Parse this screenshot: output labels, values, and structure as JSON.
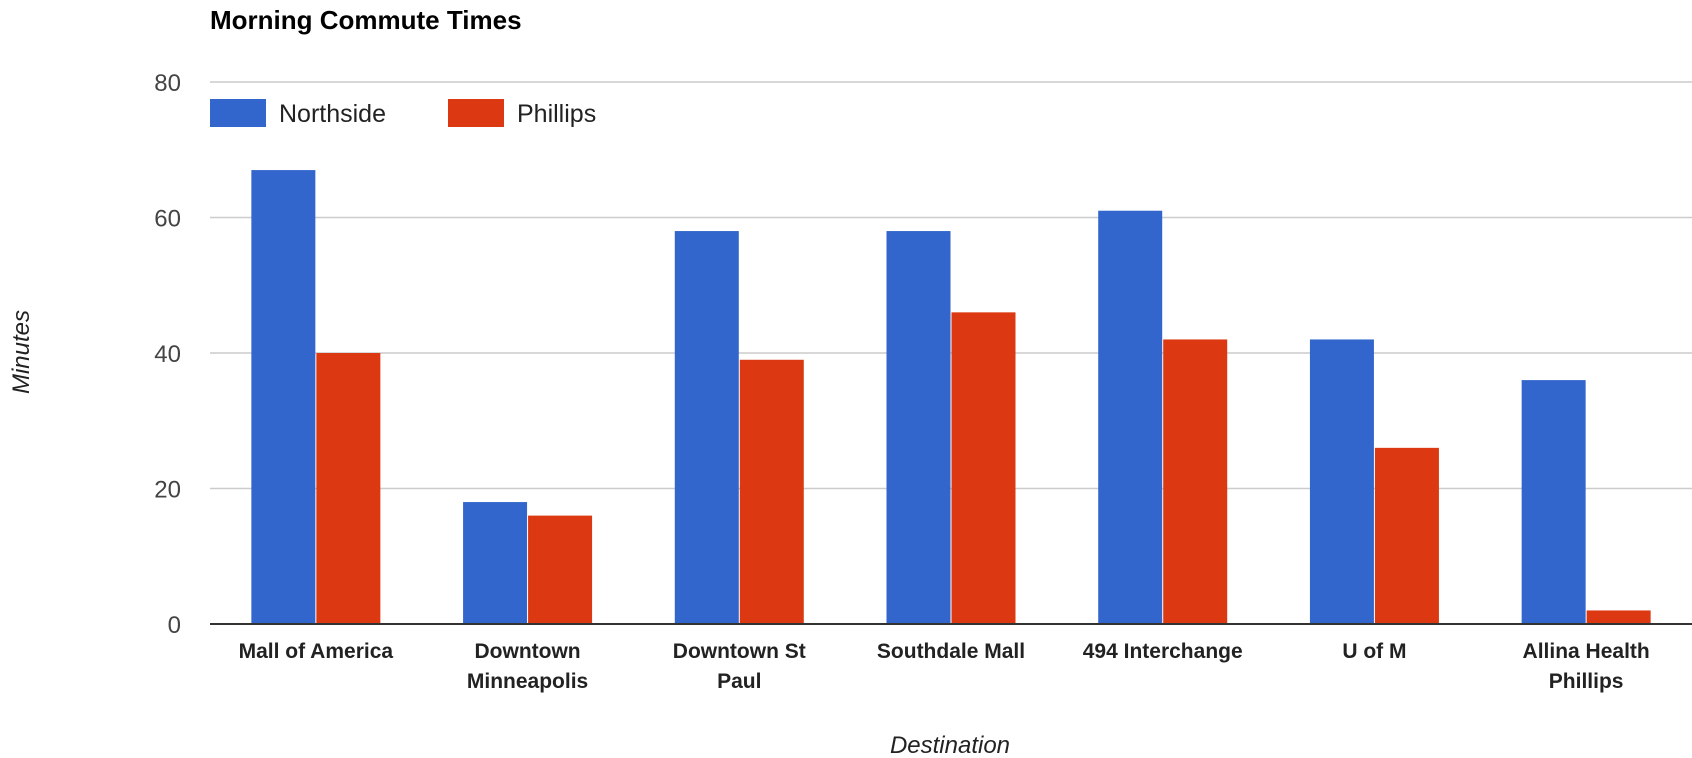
{
  "chart_data": {
    "type": "bar",
    "title": "Morning Commute Times",
    "xlabel": "Destination",
    "ylabel": "Minutes",
    "categories": [
      [
        "Mall of America"
      ],
      [
        "Downtown",
        "Minneapolis"
      ],
      [
        "Downtown St",
        "Paul"
      ],
      [
        "Southdale Mall"
      ],
      [
        "494 Interchange"
      ],
      [
        "U of M"
      ],
      [
        "Allina Health",
        "Phillips"
      ]
    ],
    "series": [
      {
        "name": "Northside",
        "color": "#3366cc",
        "values": [
          67,
          18,
          58,
          58,
          61,
          42,
          36
        ]
      },
      {
        "name": "Phillips",
        "color": "#dc3912",
        "values": [
          40,
          16,
          39,
          46,
          42,
          26,
          2
        ]
      }
    ],
    "ylim": [
      0,
      80
    ],
    "yticks": [
      "0",
      "20",
      "40",
      "60",
      "80"
    ],
    "grid": true,
    "legend_position": "top-left"
  }
}
